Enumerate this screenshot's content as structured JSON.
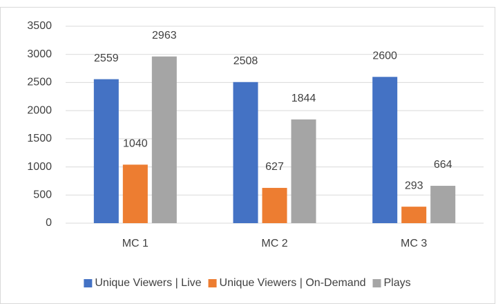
{
  "chart_data": {
    "type": "bar",
    "categories": [
      "MC 1",
      "MC 2",
      "MC 3"
    ],
    "series": [
      {
        "name": "Unique Viewers | Live",
        "color": "#4472c4",
        "values": [
          2559,
          2508,
          2600
        ]
      },
      {
        "name": "Unique Viewers | On-Demand",
        "color": "#ed7d31",
        "values": [
          1040,
          627,
          293
        ]
      },
      {
        "name": "Plays",
        "color": "#a5a5a5",
        "values": [
          2963,
          1844,
          664
        ]
      }
    ],
    "ylim": [
      0,
      3500
    ],
    "yticks": [
      0,
      500,
      1000,
      1500,
      2000,
      2500,
      3000,
      3500
    ],
    "grid": true,
    "legend": "bottom",
    "data_labels": true
  }
}
